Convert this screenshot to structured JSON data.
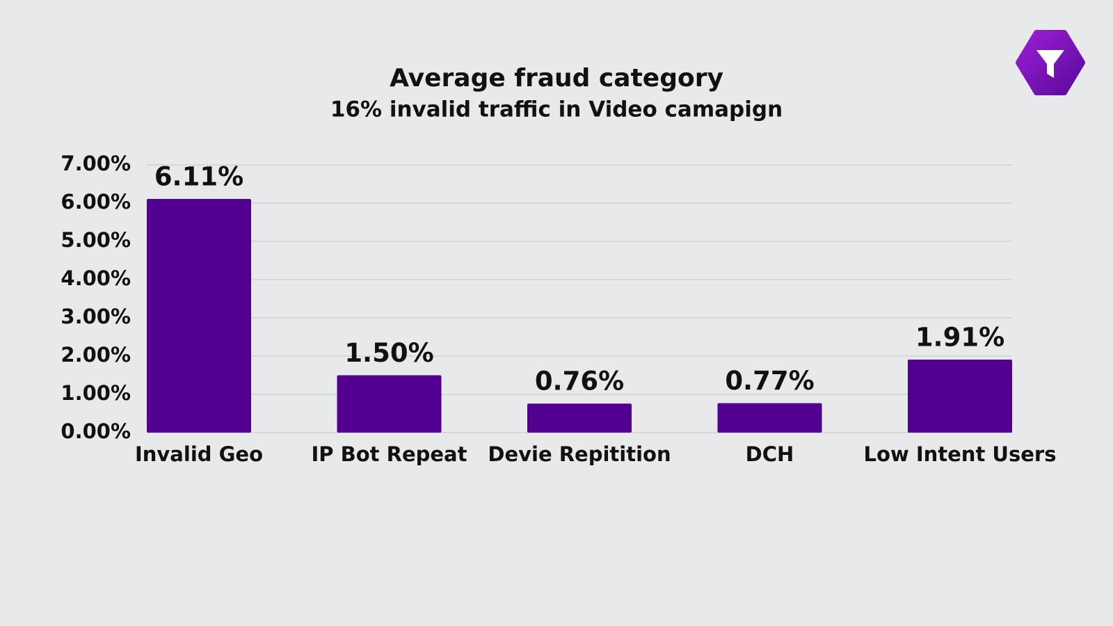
{
  "chart_data": {
    "type": "bar",
    "title": "Average fraud category",
    "subtitle": "16% invalid traffic in Video camapign",
    "categories": [
      "Invalid Geo",
      "IP Bot Repeat",
      "Devie Repitition",
      "DCH",
      "Low Intent Users"
    ],
    "values": [
      6.11,
      1.5,
      0.76,
      0.77,
      1.91
    ],
    "value_labels": [
      "6.11%",
      "1.50%",
      "0.76%",
      "0.77%",
      "1.91%"
    ],
    "color": "#520090",
    "ylim": [
      0,
      7
    ],
    "yticks": [
      {
        "value": 0,
        "label": "0.00%"
      },
      {
        "value": 1,
        "label": "1.00%"
      },
      {
        "value": 2,
        "label": "2.00%"
      },
      {
        "value": 3,
        "label": "3.00%"
      },
      {
        "value": 4,
        "label": "4.00%"
      },
      {
        "value": 5,
        "label": "5.00%"
      },
      {
        "value": 6,
        "label": "6.00%"
      },
      {
        "value": 7,
        "label": "7.00%"
      }
    ],
    "grid": true
  }
}
